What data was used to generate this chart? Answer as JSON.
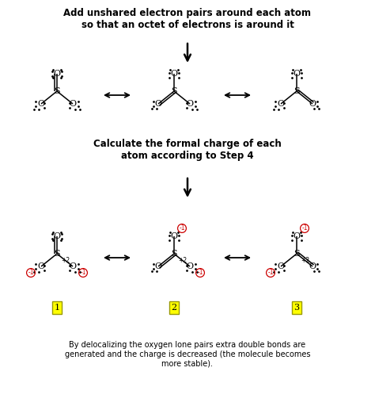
{
  "title1": "Add unshared electron pairs around each atom\nso that an octet of electrons is around it",
  "title2": "Calculate the formal charge of each\natom according to Step 4",
  "footer": "By delocalizing the oxygen lone pairs extra double bonds are\ngenerated and the charge is decreased (the molecule becomes\nmore stable).",
  "bg_color": "#ffffff",
  "text_color": "#000000",
  "label_color": "#cc0000",
  "box_color": "#ffff00",
  "font_size_title": 8.5,
  "font_size_atom": 8,
  "font_size_footer": 7
}
